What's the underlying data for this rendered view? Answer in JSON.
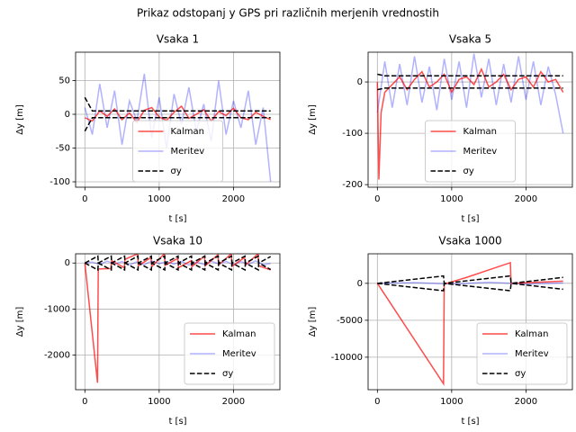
{
  "title": "Prikaz odstopanj y GPS pri različnih merjenih vrednostih",
  "chart_data": [
    {
      "type": "line",
      "title": "Vsaka 1",
      "xlabel": "t [s]",
      "ylabel": "Δy [m]",
      "xlim": [
        -125,
        2625
      ],
      "xticks": [
        0,
        1000,
        2000
      ],
      "ylim": [
        -108,
        92
      ],
      "yticks": [
        -100,
        -50,
        0,
        50
      ],
      "grid": true,
      "legend": "lower center",
      "x": [
        0,
        100,
        200,
        300,
        400,
        500,
        600,
        700,
        800,
        900,
        1000,
        1100,
        1200,
        1300,
        1400,
        1500,
        1600,
        1700,
        1800,
        1900,
        2000,
        2100,
        2200,
        2300,
        2400,
        2500
      ],
      "series": [
        {
          "name": "Kalman",
          "color": "#ff0000",
          "alpha": 0.7,
          "values": [
            -5,
            -10,
            5,
            -3,
            8,
            -8,
            2,
            -12,
            6,
            10,
            -4,
            -9,
            3,
            12,
            -6,
            0,
            7,
            -10,
            4,
            -2,
            9,
            -5,
            -8,
            3,
            -3,
            -8
          ]
        },
        {
          "name": "Meritev",
          "color": "#0000ff",
          "alpha": 0.3,
          "values": [
            10,
            -30,
            45,
            -20,
            35,
            -45,
            20,
            -10,
            60,
            -35,
            25,
            -50,
            30,
            -15,
            40,
            -25,
            15,
            -40,
            50,
            -30,
            20,
            -20,
            35,
            -45,
            10,
            -100
          ]
        },
        {
          "name": "σy",
          "color": "#000000",
          "alpha": 1,
          "dashed": true,
          "values": [
            25,
            5,
            5,
            5,
            5,
            5,
            5,
            5,
            5,
            5,
            5,
            5,
            5,
            5,
            5,
            5,
            5,
            5,
            5,
            5,
            5,
            5,
            5,
            5,
            5,
            5
          ],
          "lower": [
            -25,
            -5,
            -5,
            -5,
            -5,
            -5,
            -5,
            -5,
            -5,
            -5,
            -5,
            -5,
            -5,
            -5,
            -5,
            -5,
            -5,
            -5,
            -5,
            -5,
            -5,
            -5,
            -5,
            -5,
            -5,
            -5
          ]
        }
      ]
    },
    {
      "type": "line",
      "title": "Vsaka 5",
      "xlabel": "t [s]",
      "ylabel": "Δy [m]",
      "xlim": [
        -125,
        2625
      ],
      "xticks": [
        0,
        1000,
        2000
      ],
      "ylim": [
        -205,
        58
      ],
      "yticks": [
        -200,
        -100,
        0
      ],
      "grid": true,
      "legend": "lower center",
      "x": [
        0,
        100,
        200,
        300,
        400,
        500,
        600,
        700,
        800,
        900,
        1000,
        1100,
        1200,
        1300,
        1400,
        1500,
        1600,
        1700,
        1800,
        1900,
        2000,
        2100,
        2200,
        2300,
        2400,
        2500
      ],
      "series": [
        {
          "name": "Kalman",
          "color": "#ff0000",
          "alpha": 0.7,
          "x": [
            0,
            20,
            50,
            100,
            200,
            300,
            400,
            500,
            600,
            700,
            800,
            900,
            1000,
            1100,
            1200,
            1300,
            1400,
            1500,
            1600,
            1700,
            1800,
            1900,
            2000,
            2100,
            2200,
            2300,
            2400,
            2500
          ],
          "values": [
            0,
            -190,
            -60,
            -20,
            -5,
            10,
            -15,
            5,
            20,
            -10,
            0,
            15,
            -20,
            5,
            10,
            -5,
            25,
            -10,
            0,
            15,
            -15,
            5,
            10,
            -10,
            20,
            0,
            5,
            -20
          ]
        },
        {
          "name": "Meritev",
          "color": "#0000ff",
          "alpha": 0.3,
          "values": [
            -60,
            40,
            -50,
            35,
            -45,
            50,
            -40,
            30,
            -55,
            45,
            -35,
            40,
            -50,
            55,
            -30,
            45,
            -45,
            35,
            -40,
            50,
            -35,
            40,
            -45,
            30,
            -25,
            -100
          ]
        },
        {
          "name": "σy",
          "color": "#000000",
          "alpha": 1,
          "dashed": true,
          "values": [
            15,
            12,
            12,
            12,
            12,
            12,
            12,
            12,
            12,
            12,
            12,
            12,
            12,
            12,
            12,
            12,
            12,
            12,
            12,
            12,
            12,
            12,
            12,
            12,
            12,
            12
          ],
          "lower": [
            -15,
            -12,
            -12,
            -12,
            -12,
            -12,
            -12,
            -12,
            -12,
            -12,
            -12,
            -12,
            -12,
            -12,
            -12,
            -12,
            -12,
            -12,
            -12,
            -12,
            -12,
            -12,
            -12,
            -12,
            -12,
            -12
          ]
        }
      ]
    },
    {
      "type": "line",
      "title": "Vsaka 10",
      "xlabel": "t [s]",
      "ylabel": "Δy [m]",
      "xlim": [
        -125,
        2625
      ],
      "xticks": [
        0,
        1000,
        2000
      ],
      "ylim": [
        -2750,
        200
      ],
      "yticks": [
        -2000,
        -1000,
        0
      ],
      "grid": true,
      "legend": "lower right",
      "x": [
        0,
        100,
        200,
        300,
        400,
        500,
        600,
        700,
        800,
        900,
        1000,
        1100,
        1200,
        1300,
        1400,
        1500,
        1600,
        1700,
        1800,
        1900,
        2000,
        2100,
        2200,
        2300,
        2400,
        2500
      ],
      "series": [
        {
          "name": "Kalman",
          "color": "#ff0000",
          "alpha": 0.7,
          "x": [
            0,
            170,
            180,
            350,
            360,
            530,
            540,
            710,
            720,
            890,
            900,
            1070,
            1080,
            1250,
            1260,
            1430,
            1440,
            1610,
            1620,
            1790,
            1800,
            1970,
            1980,
            2150,
            2160,
            2330,
            2340,
            2500
          ],
          "values": [
            0,
            -2600,
            -130,
            -120,
            50,
            -100,
            80,
            200,
            -60,
            120,
            -80,
            200,
            -50,
            100,
            -100,
            50,
            -80,
            150,
            -60,
            180,
            -40,
            200,
            -70,
            120,
            -50,
            200,
            -60,
            -150
          ]
        },
        {
          "name": "Meritev",
          "color": "#0000ff",
          "alpha": 0.3,
          "values": [
            0,
            20,
            -30,
            40,
            -20,
            30,
            -40,
            25,
            -35,
            45,
            -15,
            30,
            -25,
            35,
            -45,
            20,
            -30,
            40,
            -20,
            35,
            -40,
            30,
            -25,
            45,
            -35,
            -10
          ]
        },
        {
          "name": "σy",
          "color": "#000000",
          "alpha": 1,
          "dashed": true,
          "x": [
            0,
            175,
            180,
            355,
            360,
            535,
            540,
            715,
            720,
            895,
            900,
            1075,
            1080,
            1255,
            1260,
            1435,
            1440,
            1615,
            1620,
            1795,
            1800,
            1975,
            1980,
            2155,
            2160,
            2335,
            2340,
            2500
          ],
          "values": [
            0,
            150,
            0,
            150,
            0,
            150,
            0,
            150,
            0,
            150,
            0,
            150,
            0,
            150,
            0,
            150,
            0,
            150,
            0,
            150,
            0,
            150,
            0,
            150,
            0,
            150,
            0,
            140
          ],
          "lower": [
            0,
            -150,
            0,
            -150,
            0,
            -150,
            0,
            -150,
            0,
            -150,
            0,
            -150,
            0,
            -150,
            0,
            -150,
            0,
            -150,
            0,
            -150,
            0,
            -150,
            0,
            -150,
            0,
            -150,
            0,
            -140
          ]
        }
      ]
    },
    {
      "type": "line",
      "title": "Vsaka 1000",
      "xlabel": "t [s]",
      "ylabel": "Δy [m]",
      "xlim": [
        -125,
        2625
      ],
      "xticks": [
        0,
        1000,
        2000
      ],
      "ylim": [
        -14400,
        4000
      ],
      "yticks": [
        -10000,
        -5000,
        0
      ],
      "grid": true,
      "legend": "lower right",
      "x": [
        0,
        500,
        1000,
        1500,
        2000,
        2500
      ],
      "series": [
        {
          "name": "Kalman",
          "color": "#ff0000",
          "alpha": 0.7,
          "x": [
            0,
            890,
            900,
            1200,
            1790,
            1800,
            2500
          ],
          "values": [
            0,
            -13600,
            -100,
            800,
            2800,
            0,
            300
          ]
        },
        {
          "name": "Meritev",
          "color": "#0000ff",
          "alpha": 0.3,
          "values": [
            0,
            100,
            -100,
            150,
            -100,
            50
          ]
        },
        {
          "name": "σy",
          "color": "#000000",
          "alpha": 1,
          "dashed": true,
          "x": [
            0,
            890,
            900,
            1790,
            1800,
            2500
          ],
          "values": [
            0,
            1000,
            0,
            1000,
            0,
            800
          ],
          "lower": [
            0,
            -1000,
            0,
            -1000,
            0,
            -800
          ]
        }
      ]
    }
  ]
}
